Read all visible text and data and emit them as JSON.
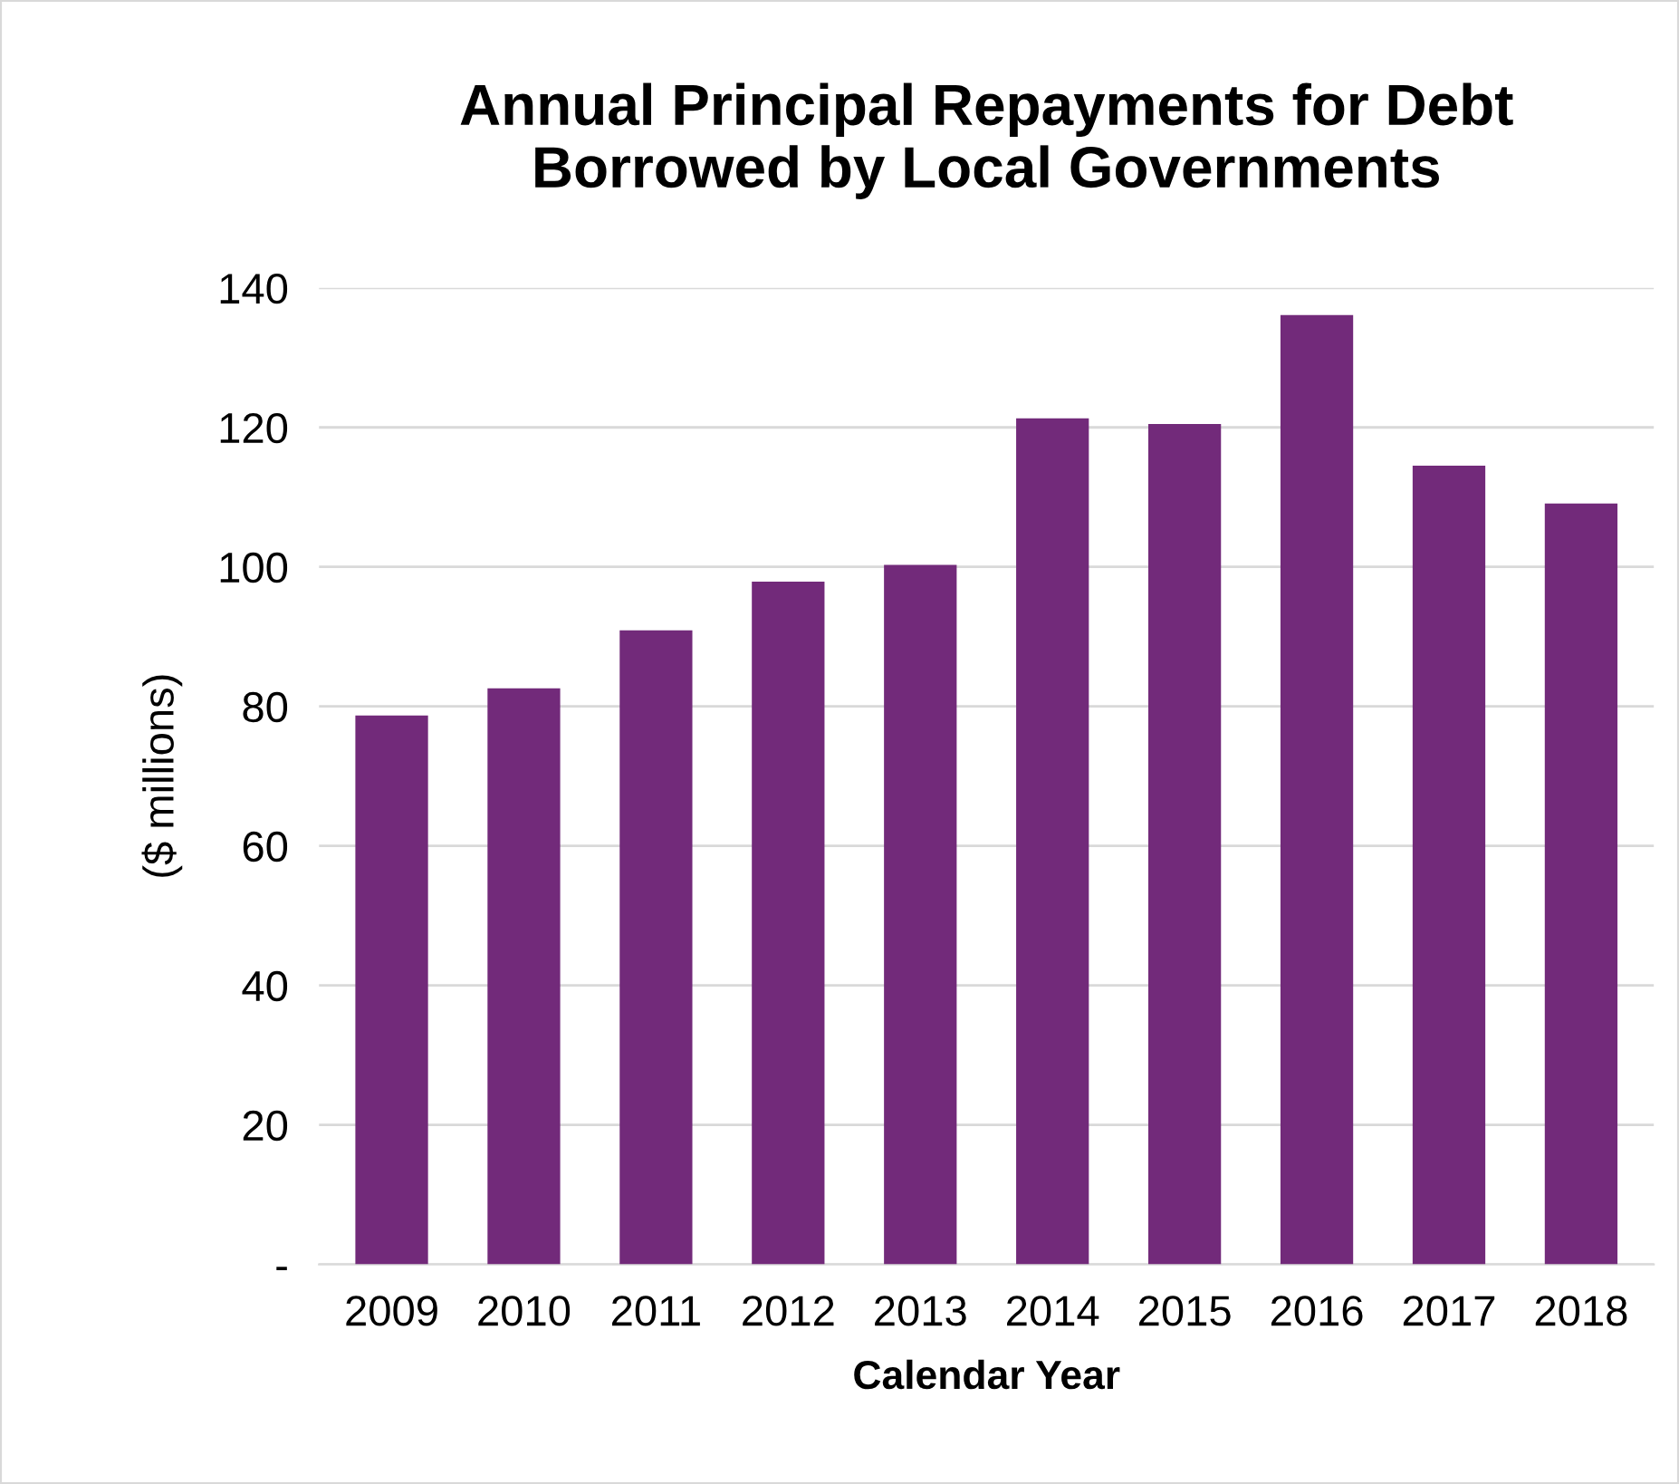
{
  "chart_data": {
    "type": "bar",
    "title": "Annual Principal Repayments for Debt\nBorrowed by Local Governments",
    "xlabel": "Calendar Year",
    "ylabel": "($ millions)",
    "categories": [
      "2009",
      "2010",
      "2011",
      "2012",
      "2013",
      "2014",
      "2015",
      "2016",
      "2017",
      "2018"
    ],
    "values": [
      78.7,
      82.6,
      90.9,
      97.9,
      100.3,
      121.3,
      120.5,
      136.1,
      114.5,
      109.1
    ],
    "color": "#722a7a",
    "ylim": [
      0,
      140
    ],
    "yticks": [
      {
        "value": 0,
        "label": "-"
      },
      20,
      40,
      60,
      80,
      100,
      120,
      140
    ],
    "grid": "y"
  }
}
